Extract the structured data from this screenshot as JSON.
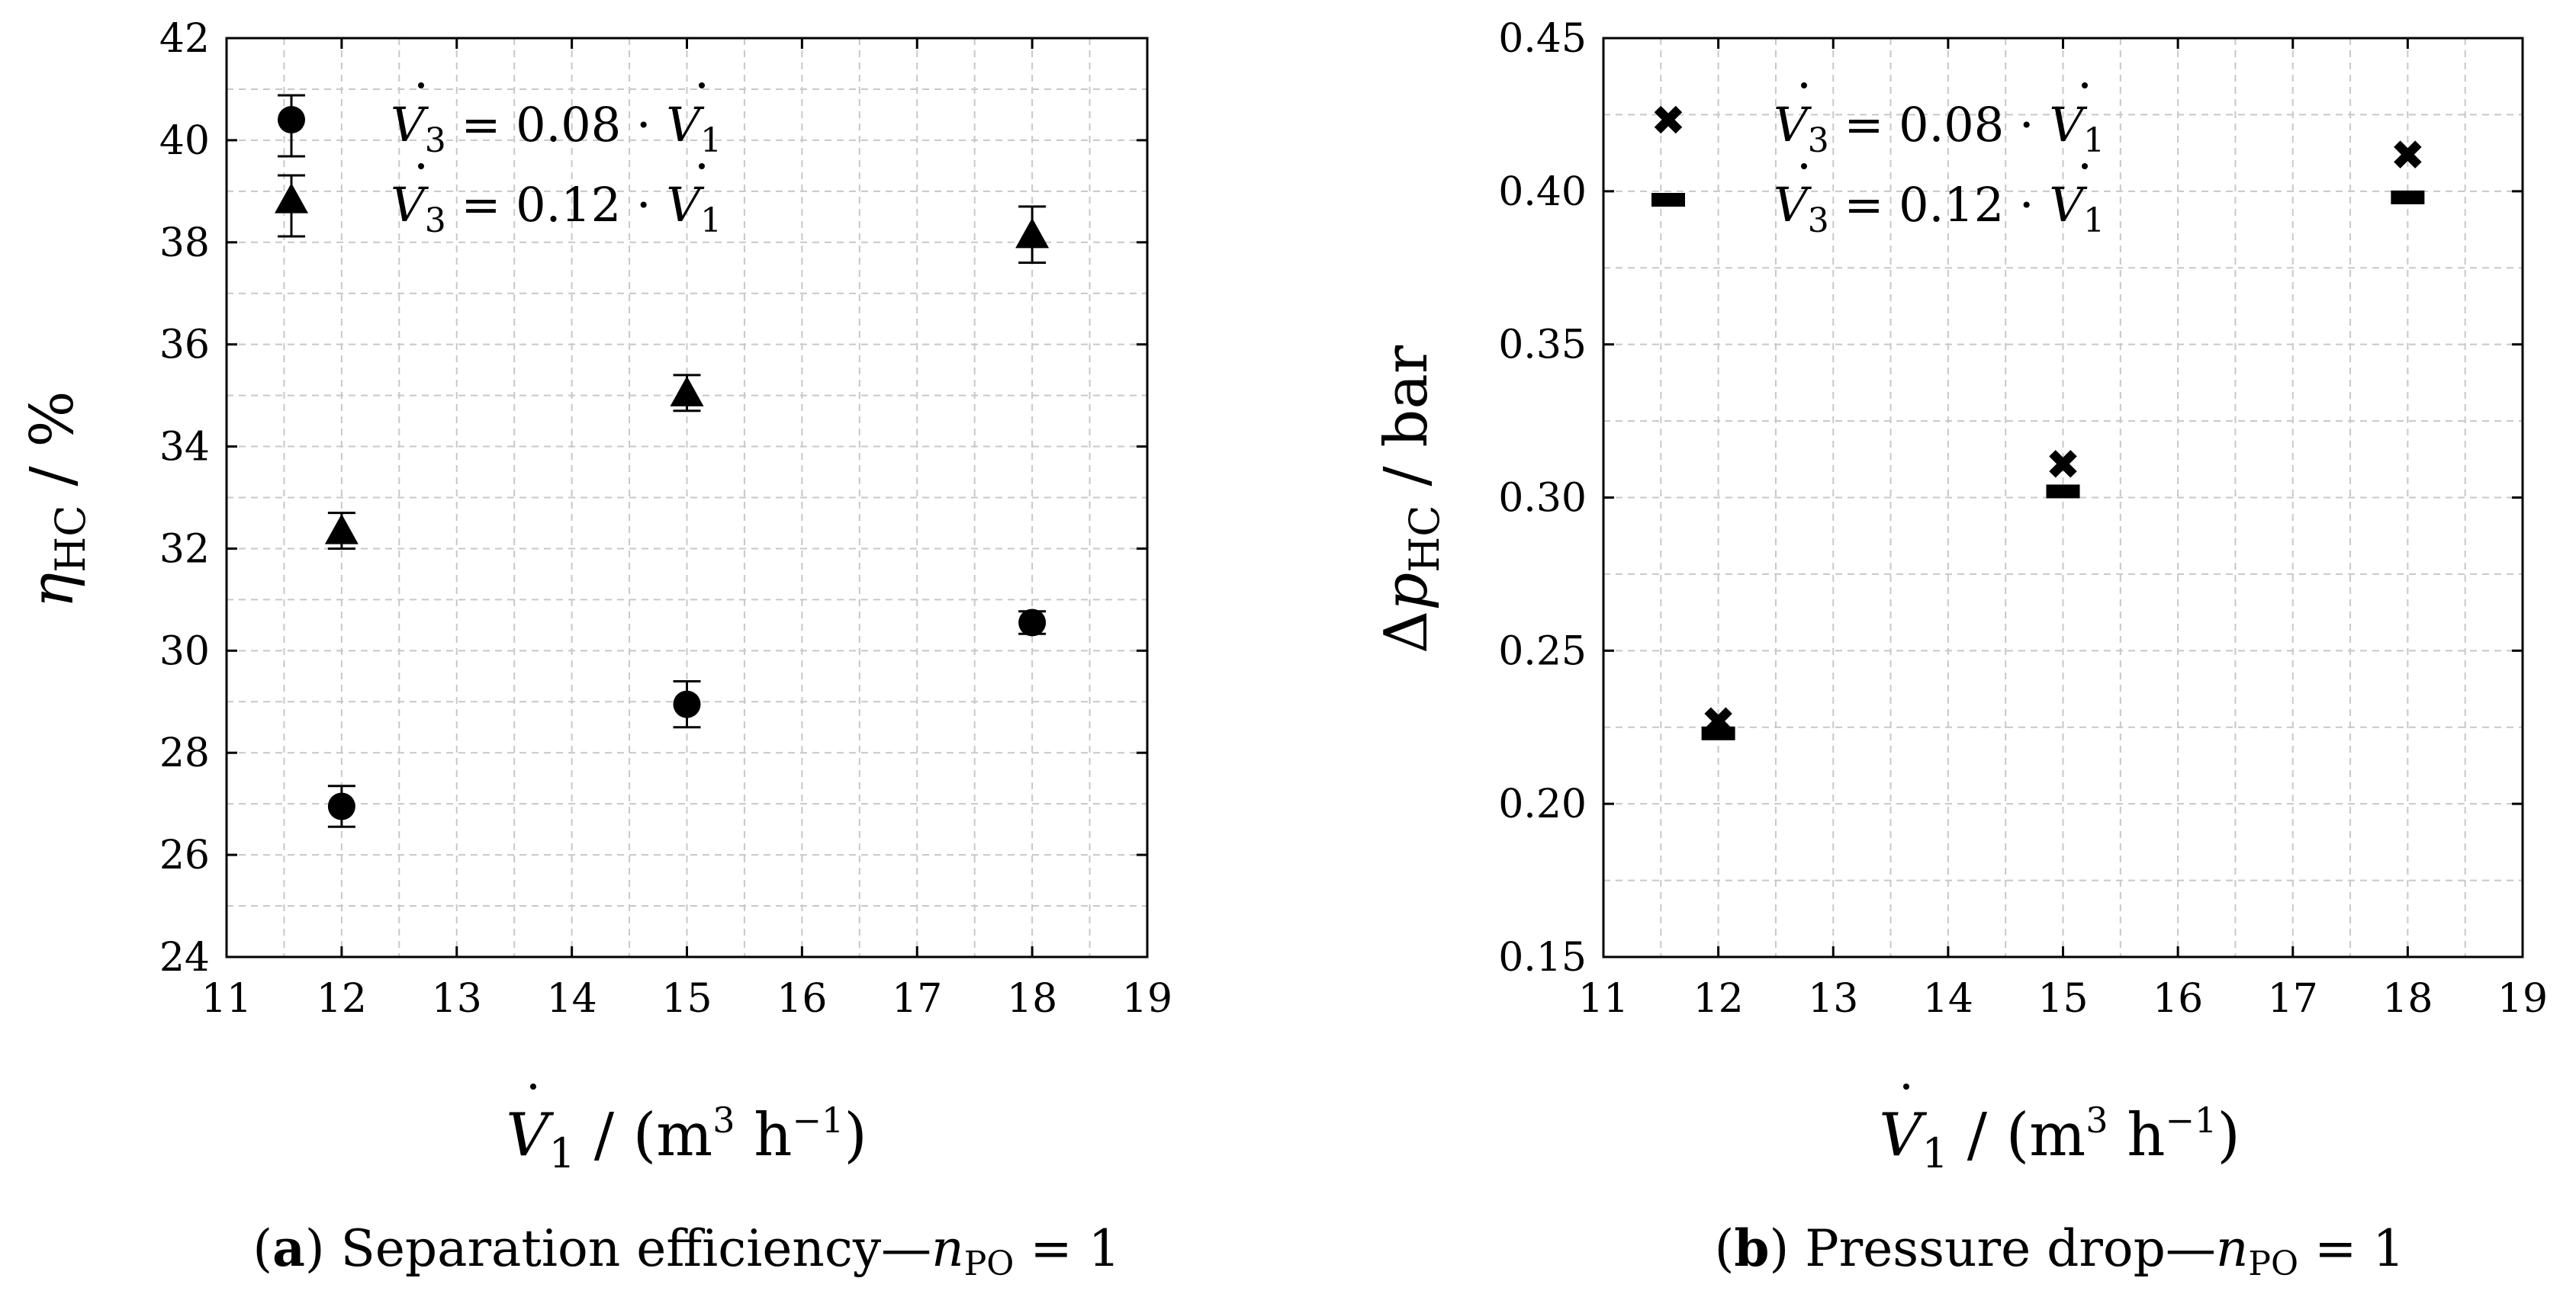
{
  "chart_data": [
    {
      "type": "scatter",
      "panel": "a",
      "caption": {
        "letter": "a",
        "text": " Separation efficiency—",
        "math": "n_PO = 1"
      },
      "xlabel": "V̇1 / (m³ h⁻¹)",
      "ylabel": "ηHC / %",
      "xlim": [
        11,
        19
      ],
      "ylim": [
        24,
        42
      ],
      "xticks": [
        11,
        12,
        13,
        14,
        15,
        16,
        17,
        18,
        19
      ],
      "yticks": [
        24,
        26,
        28,
        30,
        32,
        34,
        36,
        38,
        40,
        42
      ],
      "grid": true,
      "legend_position": "top-left",
      "series": [
        {
          "name": "V̇3 = 0.08 · V̇1",
          "marker": "circle",
          "x": [
            12,
            15,
            18
          ],
          "y": [
            26.95,
            28.95,
            30.55
          ],
          "yerr": [
            0.4,
            0.45,
            0.22
          ]
        },
        {
          "name": "V̇3 = 0.12 · V̇1",
          "marker": "triangle",
          "x": [
            12,
            15,
            18
          ],
          "y": [
            32.35,
            35.05,
            38.15
          ],
          "yerr": [
            0.35,
            0.35,
            0.55
          ]
        }
      ]
    },
    {
      "type": "scatter",
      "panel": "b",
      "caption": {
        "letter": "b",
        "text": " Pressure drop—",
        "math": "n_PO = 1"
      },
      "xlabel": "V̇1 / (m³ h⁻¹)",
      "ylabel": "ΔpHC / bar",
      "xlim": [
        11,
        19
      ],
      "ylim": [
        0.15,
        0.45
      ],
      "xticks": [
        11,
        12,
        13,
        14,
        15,
        16,
        17,
        18,
        19
      ],
      "yticks": [
        0.15,
        0.2,
        0.25,
        0.3,
        0.35,
        0.4,
        0.45
      ],
      "grid": true,
      "legend_position": "top-left",
      "series": [
        {
          "name": "V̇3 = 0.08 · V̇1",
          "marker": "x",
          "x": [
            12,
            15,
            18
          ],
          "y": [
            0.227,
            0.311,
            0.412
          ]
        },
        {
          "name": "V̇3 = 0.12 · V̇1",
          "marker": "dash",
          "x": [
            12,
            15,
            18
          ],
          "y": [
            0.223,
            0.302,
            0.398
          ]
        }
      ]
    }
  ],
  "text": {
    "a": {
      "xticks": [
        "11",
        "12",
        "13",
        "14",
        "15",
        "16",
        "17",
        "18",
        "19"
      ],
      "yticks": [
        "24",
        "26",
        "28",
        "30",
        "32",
        "34",
        "36",
        "38",
        "40",
        "42"
      ],
      "legend": [
        {
          "lhs": "V",
          "sub": "3",
          "eq": " = 0.08 · ",
          "rhs": "V",
          "rsub": "1"
        },
        {
          "lhs": "V",
          "sub": "3",
          "eq": " = 0.12 · ",
          "rhs": "V",
          "rsub": "1"
        }
      ],
      "ylabel": {
        "sym": "η",
        "sub": "HC",
        "rest": " / %"
      },
      "xlabel": {
        "sym": "V",
        "sub": "1",
        "rest": " / (m",
        "sup3": "3",
        "h": " h",
        "supm1": "−1",
        "close": ")"
      },
      "caption": {
        "open": "(",
        "letter": "a",
        "close": ")",
        "text": " Separation efficiency—",
        "n": "n",
        "sub": "PO",
        "eq": " = 1"
      }
    },
    "b": {
      "xticks": [
        "11",
        "12",
        "13",
        "14",
        "15",
        "16",
        "17",
        "18",
        "19"
      ],
      "yticks": [
        "0.15",
        "0.20",
        "0.25",
        "0.30",
        "0.35",
        "0.40",
        "0.45"
      ],
      "legend": [
        {
          "lhs": "V",
          "sub": "3",
          "eq": " = 0.08 · ",
          "rhs": "V",
          "rsub": "1"
        },
        {
          "lhs": "V",
          "sub": "3",
          "eq": " = 0.12 · ",
          "rhs": "V",
          "rsub": "1"
        }
      ],
      "ylabel": {
        "delta": "Δ",
        "sym": "p",
        "sub": "HC",
        "rest": " / bar"
      },
      "xlabel": {
        "sym": "V",
        "sub": "1",
        "rest": " / (m",
        "sup3": "3",
        "h": " h",
        "supm1": "−1",
        "close": ")"
      },
      "caption": {
        "open": "(",
        "letter": "b",
        "close": ")",
        "text": " Pressure drop—",
        "n": "n",
        "sub": "PO",
        "eq": " = 1"
      }
    }
  }
}
